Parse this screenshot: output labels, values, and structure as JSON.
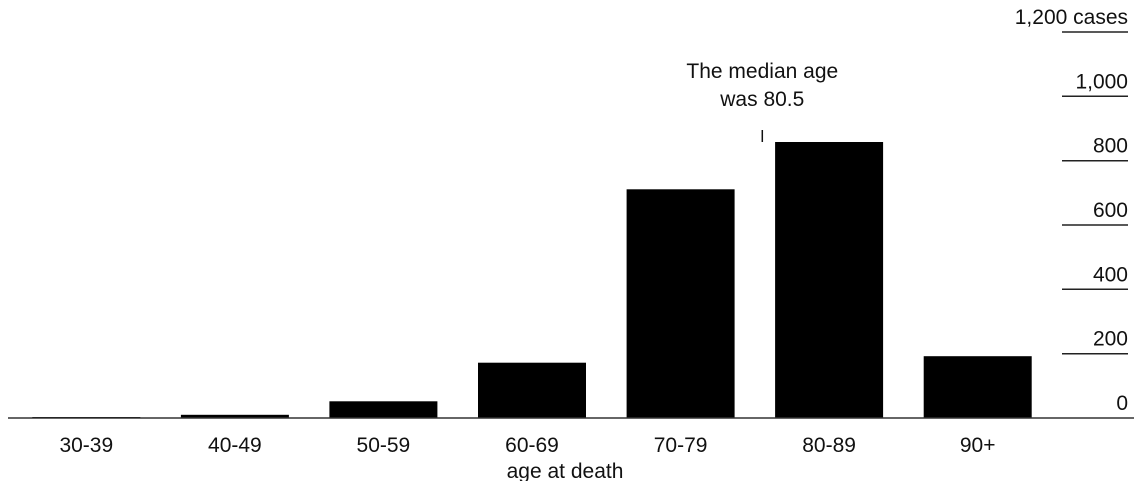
{
  "chart_data": {
    "type": "bar",
    "categories": [
      "30-39",
      "40-49",
      "50-59",
      "60-69",
      "70-79",
      "80-89",
      "90+"
    ],
    "values": [
      3,
      10,
      52,
      172,
      711,
      858,
      192
    ],
    "xlabel": "age at death",
    "ylabel": "",
    "ylim": [
      0,
      1200
    ],
    "yticks": [
      {
        "value": 0,
        "label": "0"
      },
      {
        "value": 200,
        "label": "200"
      },
      {
        "value": 400,
        "label": "400"
      },
      {
        "value": 600,
        "label": "600"
      },
      {
        "value": 800,
        "label": "800"
      },
      {
        "value": 1000,
        "label": "1,000"
      },
      {
        "value": 1200,
        "label": "1,200 cases"
      }
    ],
    "y_axis_side": "right",
    "grid": false,
    "bar_color": "#000000",
    "annotation": {
      "lines": [
        "The median age",
        "was 80.5"
      ],
      "x_value": 80.5
    }
  }
}
